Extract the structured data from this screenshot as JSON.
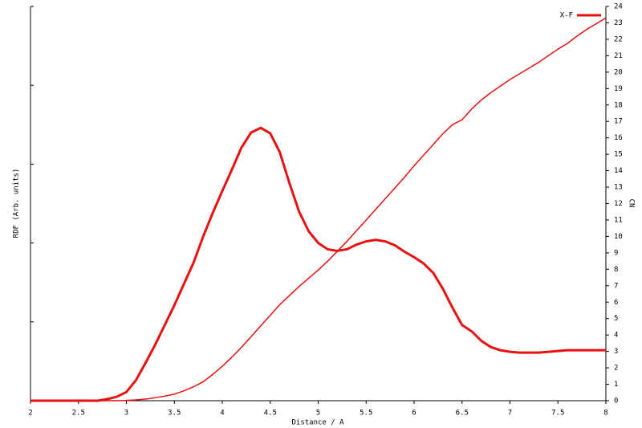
{
  "chart_data": {
    "type": "line",
    "xlabel": "Distance / A",
    "ylabel": "RDF (Arb. units)",
    "y2label": "CN",
    "x": [
      2.0,
      2.1,
      2.2,
      2.3,
      2.4,
      2.5,
      2.6,
      2.7,
      2.8,
      2.9,
      3.0,
      3.1,
      3.2,
      3.3,
      3.4,
      3.5,
      3.6,
      3.7,
      3.8,
      3.9,
      4.0,
      4.1,
      4.2,
      4.3,
      4.4,
      4.5,
      4.6,
      4.7,
      4.8,
      4.9,
      5.0,
      5.1,
      5.2,
      5.3,
      5.4,
      5.5,
      5.6,
      5.7,
      5.8,
      5.9,
      6.0,
      6.1,
      6.2,
      6.3,
      6.4,
      6.5,
      6.6,
      6.7,
      6.8,
      6.9,
      7.0,
      7.1,
      7.2,
      7.3,
      7.4,
      7.5,
      7.6,
      7.7,
      7.8,
      7.9,
      8.0
    ],
    "series": [
      {
        "name": "X-F",
        "color": "#e81010",
        "width": 3,
        "values": [
          0,
          0,
          0,
          0,
          0,
          0,
          0,
          0,
          0.02,
          0.05,
          0.11,
          0.26,
          0.48,
          0.71,
          0.96,
          1.21,
          1.48,
          1.75,
          2.08,
          2.38,
          2.66,
          2.93,
          3.21,
          3.4,
          3.46,
          3.39,
          3.15,
          2.76,
          2.4,
          2.15,
          2.0,
          1.92,
          1.9,
          1.92,
          1.98,
          2.02,
          2.04,
          2.02,
          1.97,
          1.89,
          1.82,
          1.74,
          1.62,
          1.42,
          1.18,
          0.96,
          0.88,
          0.76,
          0.68,
          0.64,
          0.62,
          0.61,
          0.61,
          0.61,
          0.62,
          0.63,
          0.64,
          0.64,
          0.64,
          0.64,
          0.64
        ]
      },
      {
        "color": "#e81010",
        "width": 1.5,
        "axis": "y2",
        "values": [
          0,
          0,
          0,
          0,
          0,
          0,
          0,
          0,
          0,
          0,
          0.02,
          0.05,
          0.1,
          0.18,
          0.28,
          0.4,
          0.6,
          0.85,
          1.15,
          1.6,
          2.1,
          2.65,
          3.25,
          3.9,
          4.55,
          5.2,
          5.85,
          6.4,
          6.95,
          7.45,
          7.95,
          8.5,
          9.1,
          9.7,
          10.35,
          11.0,
          11.65,
          12.3,
          12.95,
          13.6,
          14.3,
          14.95,
          15.6,
          16.25,
          16.8,
          17.1,
          17.75,
          18.3,
          18.75,
          19.15,
          19.55,
          19.9,
          20.25,
          20.6,
          21.0,
          21.4,
          21.75,
          22.2,
          22.6,
          22.95,
          23.3
        ]
      }
    ],
    "xlim": [
      2,
      8
    ],
    "xticks": [
      2,
      2.5,
      3,
      3.5,
      4,
      4.5,
      5,
      5.5,
      6,
      6.5,
      7,
      7.5,
      8
    ],
    "ylim": [
      0,
      5
    ],
    "yticks": [
      0,
      1,
      2,
      3,
      4,
      5
    ],
    "y2lim": [
      0,
      24
    ],
    "y2ticks": [
      0,
      1,
      2,
      3,
      4,
      5,
      6,
      7,
      8,
      9,
      10,
      11,
      12,
      13,
      14,
      15,
      16,
      17,
      18,
      19,
      20,
      21,
      22,
      23,
      24
    ],
    "legend": "top-right"
  }
}
